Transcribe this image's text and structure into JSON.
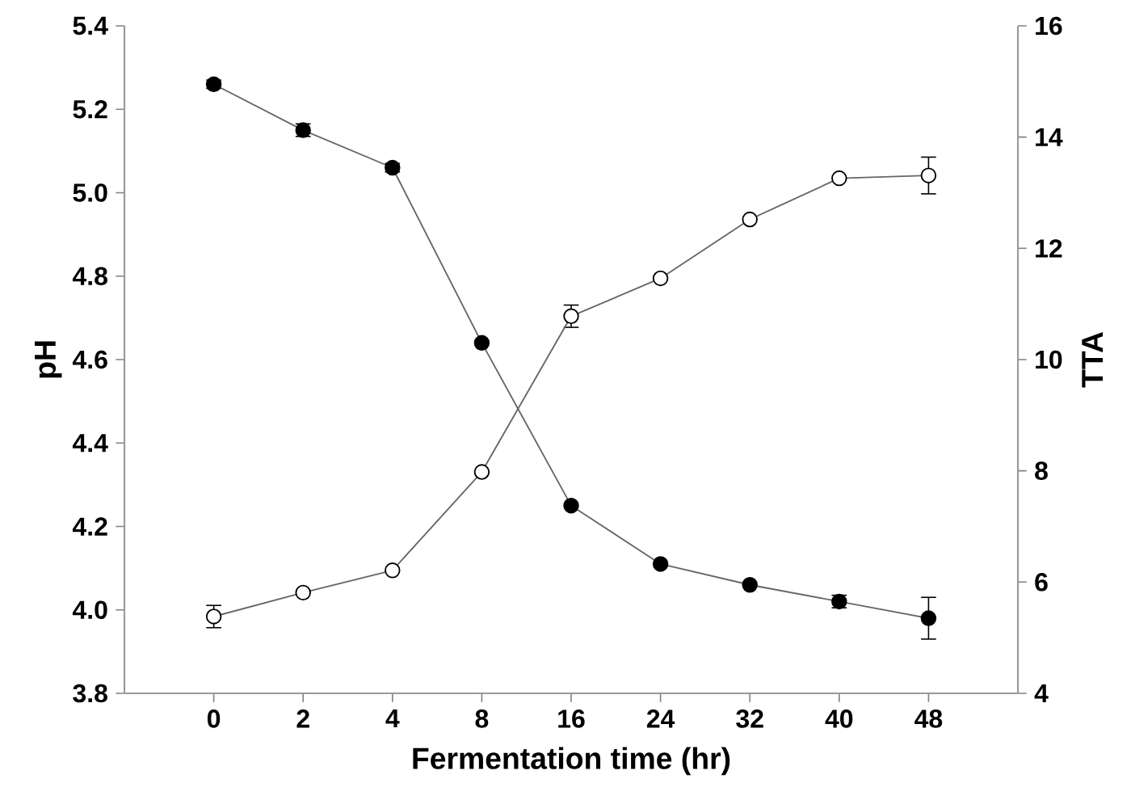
{
  "chart_data": {
    "type": "line",
    "xlabel": "Fermentation time (hr)",
    "ylabel": "pH",
    "y2label": "TTA",
    "categories": [
      "0",
      "2",
      "4",
      "8",
      "16",
      "24",
      "32",
      "40",
      "48"
    ],
    "series": [
      {
        "color": "#000000",
        "values": [
          5.26,
          5.15,
          5.06,
          4.64,
          4.25,
          4.11,
          4.06,
          4.02,
          3.98
        ],
        "errors": [
          0.01,
          0.015,
          0.01,
          null,
          null,
          null,
          null,
          0.015,
          0.05
        ]
      },
      {
        "color": "#ffffff",
        "axis": "y2",
        "values": [
          5.38,
          5.81,
          6.21,
          7.98,
          10.78,
          11.46,
          12.52,
          13.26,
          13.31
        ],
        "errors": [
          0.2,
          null,
          null,
          null,
          0.2,
          null,
          null,
          null,
          0.33
        ]
      }
    ],
    "ylim": [
      3.8,
      5.4
    ],
    "yticks": [
      3.8,
      {
        "value": 4,
        "label": "4.0"
      },
      4.2,
      4.4,
      4.6,
      4.8,
      {
        "value": 5,
        "label": "5.0"
      },
      5.2,
      5.4
    ],
    "y2lim": [
      4,
      16
    ],
    "y2ticks": [
      4,
      6,
      8,
      10,
      12,
      14,
      16
    ],
    "marker": "circle",
    "line_style": "solid",
    "grid": false
  }
}
